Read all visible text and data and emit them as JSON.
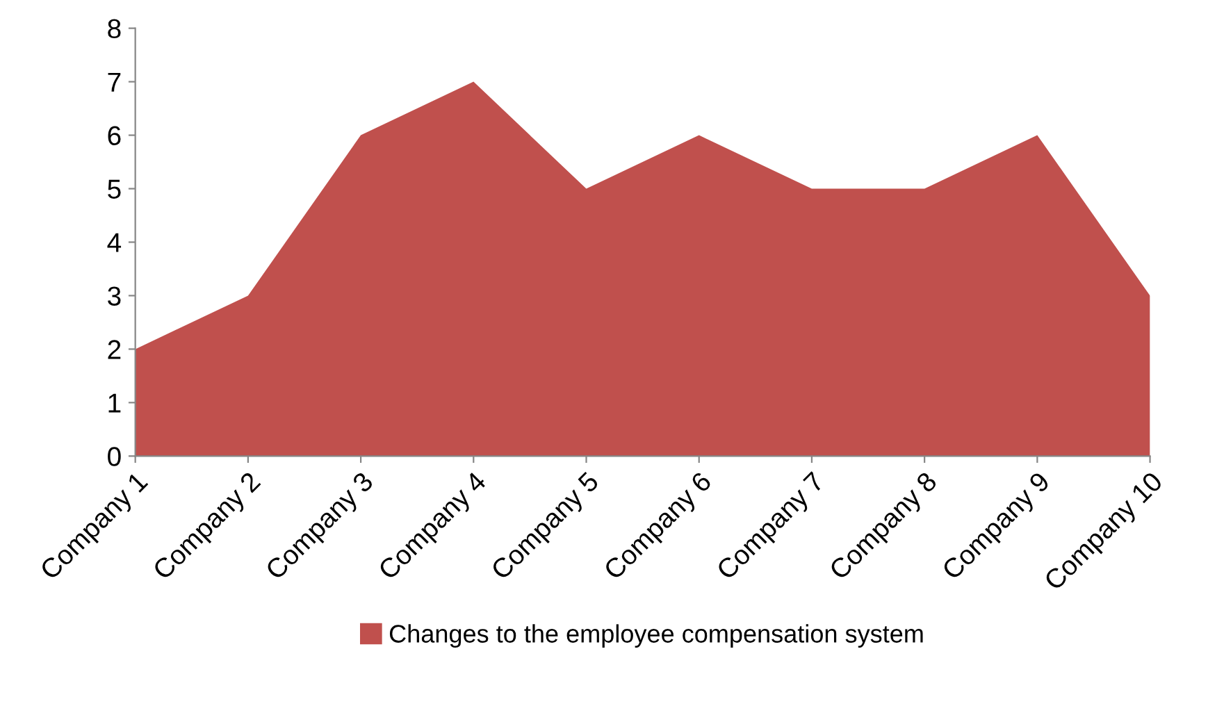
{
  "chart_data": {
    "type": "area",
    "categories": [
      "Company 1",
      "Company 2",
      "Company 3",
      "Company 4",
      "Company 5",
      "Company 6",
      "Company 7",
      "Company 8",
      "Company 9",
      "Company 10"
    ],
    "series": [
      {
        "name": "Changes to the employee compensation system",
        "color": "#c0504d",
        "values": [
          2,
          3,
          6,
          7,
          5,
          6,
          5,
          5,
          6,
          3
        ]
      }
    ],
    "ylim": [
      0,
      8
    ],
    "yticks": [
      0,
      1,
      2,
      3,
      4,
      5,
      6,
      7,
      8
    ],
    "grid": false,
    "legend": "bottom"
  }
}
